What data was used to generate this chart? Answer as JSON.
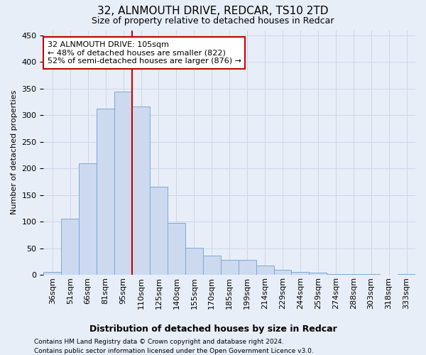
{
  "title": "32, ALNMOUTH DRIVE, REDCAR, TS10 2TD",
  "subtitle": "Size of property relative to detached houses in Redcar",
  "xlabel": "Distribution of detached houses by size in Redcar",
  "ylabel": "Number of detached properties",
  "categories": [
    "36sqm",
    "51sqm",
    "66sqm",
    "81sqm",
    "95sqm",
    "110sqm",
    "125sqm",
    "140sqm",
    "155sqm",
    "170sqm",
    "185sqm",
    "199sqm",
    "214sqm",
    "229sqm",
    "244sqm",
    "259sqm",
    "274sqm",
    "288sqm",
    "303sqm",
    "318sqm",
    "333sqm"
  ],
  "values": [
    5,
    106,
    210,
    313,
    344,
    316,
    165,
    97,
    51,
    36,
    28,
    28,
    18,
    10,
    5,
    4,
    2,
    1,
    1,
    0,
    1
  ],
  "bar_color": "#ccd9ef",
  "bar_edge_color": "#7fa8d3",
  "vline_x_index": 4.5,
  "property_line_label": "32 ALNMOUTH DRIVE: 105sqm",
  "annotation_line1": "← 48% of detached houses are smaller (822)",
  "annotation_line2": "52% of semi-detached houses are larger (876) →",
  "annotation_box_facecolor": "#ffffff",
  "annotation_box_edgecolor": "#cc0000",
  "vline_color": "#cc0000",
  "grid_color": "#cdd6e8",
  "background_color": "#e8eef8",
  "ylim": [
    0,
    460
  ],
  "yticks": [
    0,
    50,
    100,
    150,
    200,
    250,
    300,
    350,
    400,
    450
  ],
  "footer_line1": "Contains HM Land Registry data © Crown copyright and database right 2024.",
  "footer_line2": "Contains public sector information licensed under the Open Government Licence v3.0.",
  "title_fontsize": 11,
  "subtitle_fontsize": 9,
  "xlabel_fontsize": 9,
  "ylabel_fontsize": 8,
  "tick_fontsize": 8,
  "annot_fontsize": 8,
  "footer_fontsize": 6.5
}
